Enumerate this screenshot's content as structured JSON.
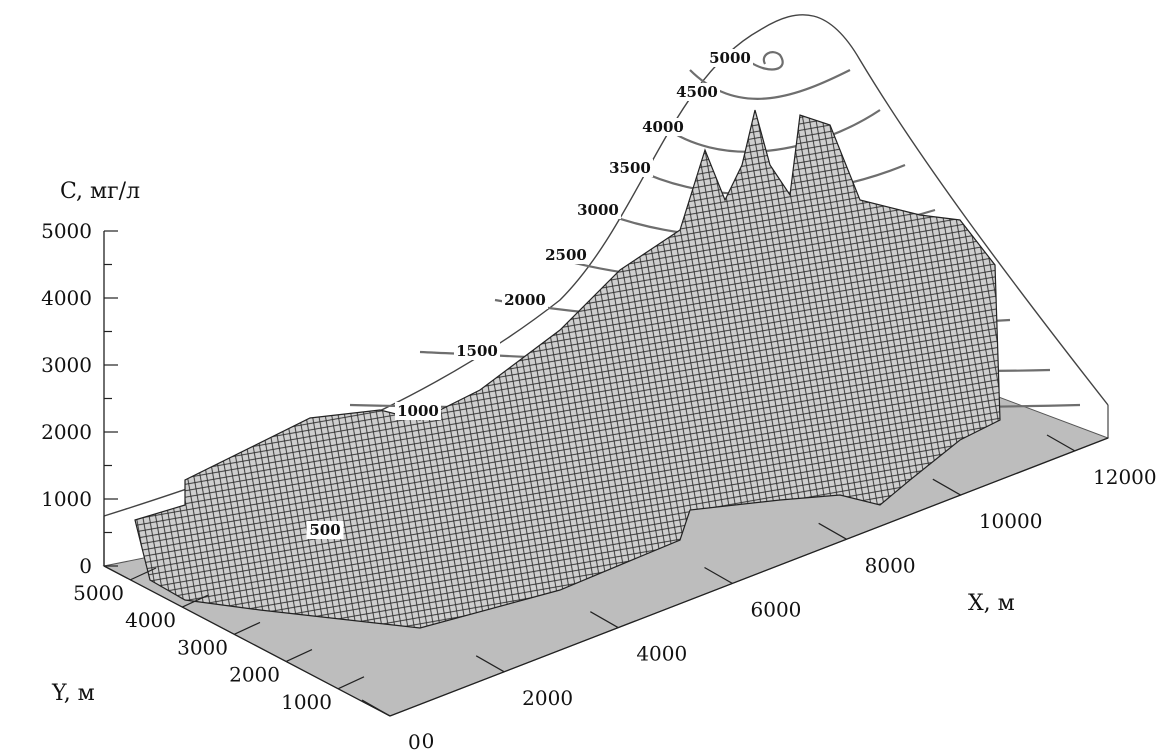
{
  "chart_data": {
    "type": "surface3d",
    "z_axis": {
      "label": "C, мг/л",
      "ticks": [
        "0",
        "1000",
        "2000",
        "3000",
        "4000",
        "5000"
      ],
      "range": [
        0,
        5000
      ]
    },
    "x_axis": {
      "label": "X, м",
      "ticks": [
        "0",
        "2000",
        "4000",
        "6000",
        "8000",
        "10000",
        "12000"
      ],
      "range": [
        0,
        12000
      ]
    },
    "y_axis": {
      "label": "Y, м",
      "ticks": [
        "1000",
        "2000",
        "3000",
        "4000",
        "5000"
      ],
      "range": [
        0,
        5000
      ]
    },
    "contour_levels": [
      "500",
      "1000",
      "1500",
      "2000",
      "2500",
      "3000",
      "3500",
      "4000",
      "4500",
      "5000"
    ],
    "peak_concentration": 5000,
    "colors": {
      "surface": "#cfcfcf",
      "mesh": "#2a2a2a",
      "floor": "#bdbdbd",
      "contour": "#6e6e6e"
    }
  }
}
